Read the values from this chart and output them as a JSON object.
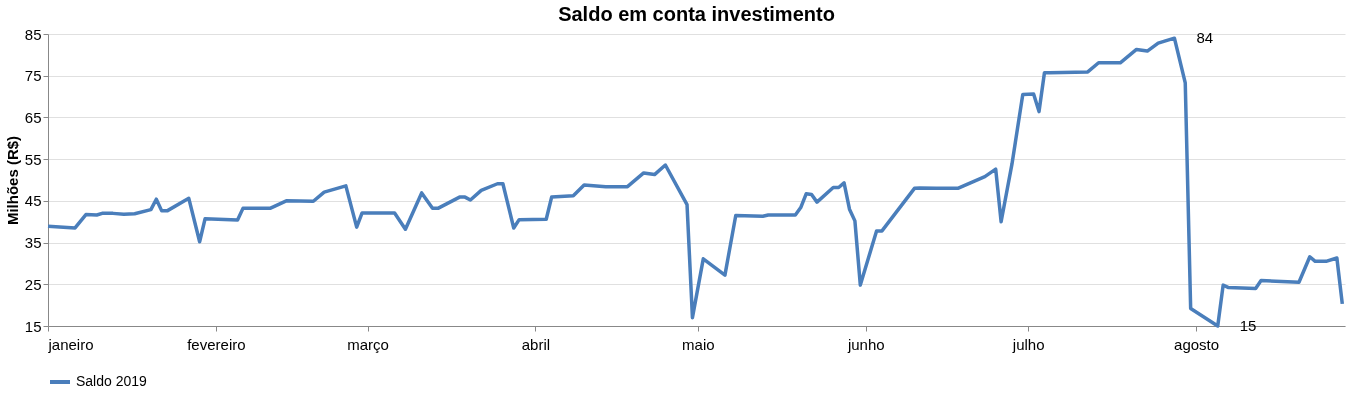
{
  "chart_data": {
    "type": "line",
    "title": "Saldo em conta investimento",
    "ylabel": "Milhões (R$)",
    "x": [
      "2019-01-01",
      "2019-01-06",
      "2019-01-08",
      "2019-01-10",
      "2019-01-11",
      "2019-01-13",
      "2019-01-15",
      "2019-01-17",
      "2019-01-20",
      "2019-01-21",
      "2019-01-22",
      "2019-01-23",
      "2019-01-27",
      "2019-01-29",
      "2019-01-30",
      "2019-02-05",
      "2019-02-06",
      "2019-02-11",
      "2019-02-14",
      "2019-02-19",
      "2019-02-21",
      "2019-02-25",
      "2019-02-27",
      "2019-02-28",
      "2019-03-06",
      "2019-03-08",
      "2019-03-11",
      "2019-03-13",
      "2019-03-14",
      "2019-03-18",
      "2019-03-19",
      "2019-03-20",
      "2019-03-22",
      "2019-03-25",
      "2019-03-26",
      "2019-03-28",
      "2019-03-29",
      "2019-04-03",
      "2019-04-04",
      "2019-04-08",
      "2019-04-10",
      "2019-04-14",
      "2019-04-18",
      "2019-04-21",
      "2019-04-23",
      "2019-04-25",
      "2019-04-29",
      "2019-04-30",
      "2019-05-02",
      "2019-05-06",
      "2019-05-08",
      "2019-05-13",
      "2019-05-14",
      "2019-05-19",
      "2019-05-20",
      "2019-05-21",
      "2019-05-22",
      "2019-05-23",
      "2019-05-26",
      "2019-05-27",
      "2019-05-28",
      "2019-05-29",
      "2019-05-30",
      "2019-05-31",
      "2019-06-03",
      "2019-06-04",
      "2019-06-10",
      "2019-06-11",
      "2019-06-14",
      "2019-06-18",
      "2019-06-23",
      "2019-06-25",
      "2019-06-26",
      "2019-06-28",
      "2019-06-30",
      "2019-07-02",
      "2019-07-03",
      "2019-07-04",
      "2019-07-05",
      "2019-07-12",
      "2019-07-14",
      "2019-07-18",
      "2019-07-21",
      "2019-07-23",
      "2019-07-25",
      "2019-07-28",
      "2019-07-30",
      "2019-07-31",
      "2019-08-05",
      "2019-08-06",
      "2019-08-07",
      "2019-08-12",
      "2019-08-13",
      "2019-08-20",
      "2019-08-22",
      "2019-08-23",
      "2019-08-25",
      "2019-08-27",
      "2019-08-28"
    ],
    "series": [
      {
        "name": "Saldo 2019",
        "color": "#4a7ebb",
        "values": [
          38.9,
          38.5,
          41.7,
          41.6,
          42,
          42,
          41.8,
          41.9,
          42.9,
          45.4,
          42.6,
          42.6,
          45.6,
          35.2,
          40.7,
          40.4,
          43.2,
          43.2,
          45,
          44.9,
          47.1,
          48.6,
          38.7,
          42.1,
          42.1,
          38.2,
          46.9,
          43.2,
          43.2,
          45.9,
          45.9,
          45.2,
          47.5,
          49.1,
          49.1,
          38.5,
          40.5,
          40.6,
          45.9,
          46.2,
          48.8,
          48.4,
          48.4,
          51.7,
          51.3,
          53.6,
          44.1,
          17,
          31.1,
          27.2,
          41.5,
          41.3,
          41.6,
          41.6,
          43.4,
          46.7,
          46.5,
          44.7,
          48.2,
          48.2,
          49.3,
          43,
          40.2,
          24.8,
          37.8,
          37.8,
          48,
          48.1,
          48,
          48,
          50.8,
          52.6,
          40,
          53.8,
          70.5,
          70.6,
          66.4,
          75.7,
          75.7,
          75.9,
          78.1,
          78.1,
          81.3,
          80.9,
          82.8,
          84,
          73.3,
          19.2,
          15,
          24.8,
          24.2,
          24,
          25.9,
          25.5,
          31.6,
          30.5,
          30.5,
          31.3,
          20.3
        ]
      }
    ],
    "xlim": [
      "2019-01-01",
      "2019-08-28T12:00"
    ],
    "xticks": [
      {
        "value": "2019-01-01",
        "label": "janeiro"
      },
      {
        "value": "2019-02-01",
        "label": "fevereiro"
      },
      {
        "value": "2019-03-01",
        "label": "março"
      },
      {
        "value": "2019-04-01",
        "label": "abril"
      },
      {
        "value": "2019-05-01",
        "label": "maio"
      },
      {
        "value": "2019-06-01",
        "label": "junho"
      },
      {
        "value": "2019-07-01",
        "label": "julho"
      },
      {
        "value": "2019-08-01",
        "label": "agosto"
      }
    ],
    "ylim": [
      15,
      85
    ],
    "yticks": [
      15,
      25,
      35,
      45,
      55,
      65,
      75,
      85
    ],
    "annotations": [
      {
        "text": "84",
        "x": "2019-07-28",
        "y": 84
      },
      {
        "text": "15",
        "x": "2019-08-05",
        "y": 15
      }
    ],
    "grid": "y",
    "legend": "bottom",
    "marker": "none",
    "line_style": "solid"
  }
}
